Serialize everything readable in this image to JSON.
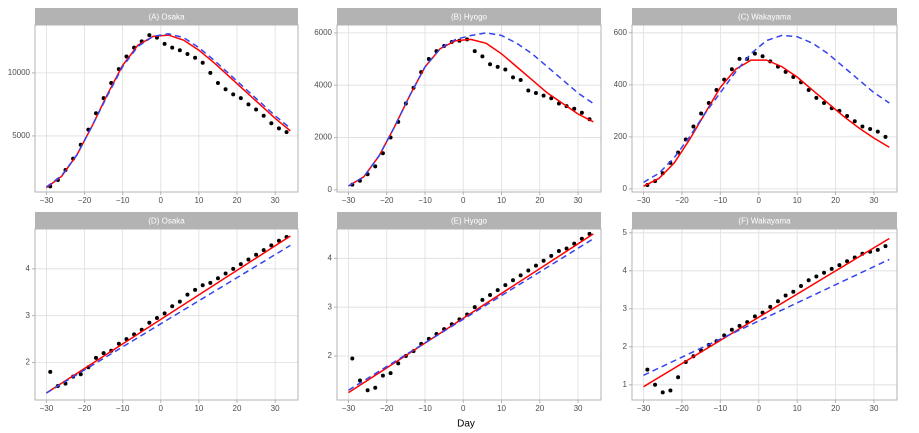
{
  "xlabel": "Day",
  "chart_data": [
    {
      "type": "scatter",
      "title": "(A) Osaka",
      "xlim": [
        -33,
        36
      ],
      "ylim": [
        550,
        13800
      ],
      "xticks": [
        {
          "value": -30,
          "label": "−30"
        },
        {
          "value": -20,
          "label": "−20"
        },
        {
          "value": -10,
          "label": "−10"
        },
        0,
        10,
        20,
        30
      ],
      "yticks": [
        5000,
        10000
      ],
      "grid": true,
      "series": [
        {
          "style": "points",
          "color": "#000000",
          "x": [
            -29,
            -27,
            -25,
            -23,
            -21,
            -19,
            -17,
            -15,
            -13,
            -11,
            -9,
            -7,
            -5,
            -3,
            -1,
            1,
            3,
            5,
            7,
            9,
            11,
            13,
            15,
            17,
            19,
            21,
            23,
            25,
            27,
            29,
            31,
            33
          ],
          "values": [
            1000,
            1500,
            2300,
            3200,
            4300,
            5500,
            6800,
            8000,
            9200,
            10300,
            11300,
            12000,
            12500,
            13000,
            12800,
            12300,
            12000,
            11800,
            11500,
            11200,
            10800,
            10000,
            9200,
            8700,
            8300,
            8000,
            7500,
            7100,
            6600,
            6000,
            5600,
            5300
          ]
        },
        {
          "style": "line",
          "color": "#ff0000",
          "x": [
            -30,
            -26,
            -22,
            -18,
            -14,
            -10,
            -6,
            -2,
            2,
            6,
            10,
            14,
            18,
            22,
            26,
            30,
            34
          ],
          "values": [
            900,
            1800,
            3500,
            5800,
            8300,
            10600,
            12200,
            12900,
            13000,
            12600,
            11800,
            10800,
            9700,
            8600,
            7500,
            6400,
            5400
          ]
        },
        {
          "style": "dashed",
          "color": "#3344ee",
          "x": [
            -30,
            -26,
            -22,
            -18,
            -14,
            -10,
            -6,
            -2,
            2,
            6,
            10,
            14,
            18,
            22,
            26,
            30,
            34
          ],
          "values": [
            950,
            1850,
            3500,
            5800,
            8200,
            10500,
            12100,
            12900,
            13100,
            12800,
            12000,
            11000,
            9900,
            8800,
            7700,
            6600,
            5600
          ]
        }
      ]
    },
    {
      "type": "scatter",
      "title": "(B) Hyogo",
      "xlim": [
        -33,
        36
      ],
      "ylim": [
        -80,
        6300
      ],
      "xticks": [
        {
          "value": -30,
          "label": "−30"
        },
        {
          "value": -20,
          "label": "−20"
        },
        {
          "value": -10,
          "label": "−10"
        },
        0,
        10,
        20,
        30
      ],
      "yticks": [
        0,
        2000,
        4000,
        6000
      ],
      "grid": true,
      "series": [
        {
          "style": "points",
          "color": "#000000",
          "x": [
            -29,
            -27,
            -25,
            -23,
            -21,
            -19,
            -17,
            -15,
            -13,
            -11,
            -9,
            -7,
            -5,
            -3,
            -1,
            1,
            3,
            5,
            7,
            9,
            11,
            13,
            15,
            17,
            19,
            21,
            23,
            25,
            27,
            29,
            31,
            33
          ],
          "values": [
            200,
            350,
            600,
            900,
            1400,
            2000,
            2600,
            3300,
            3900,
            4500,
            5000,
            5300,
            5500,
            5650,
            5700,
            5750,
            5300,
            5100,
            4800,
            4700,
            4600,
            4300,
            4200,
            3800,
            3700,
            3600,
            3500,
            3300,
            3200,
            3100,
            2950,
            2700
          ]
        },
        {
          "style": "line",
          "color": "#ff0000",
          "x": [
            -30,
            -26,
            -22,
            -18,
            -14,
            -10,
            -6,
            -2,
            2,
            6,
            10,
            14,
            18,
            22,
            26,
            30,
            34
          ],
          "values": [
            150,
            500,
            1300,
            2400,
            3600,
            4700,
            5400,
            5700,
            5750,
            5600,
            5200,
            4700,
            4200,
            3700,
            3300,
            2900,
            2600
          ]
        },
        {
          "style": "dashed",
          "color": "#3344ee",
          "x": [
            -30,
            -26,
            -22,
            -18,
            -14,
            -10,
            -6,
            -2,
            2,
            6,
            10,
            14,
            18,
            22,
            26,
            30,
            34
          ],
          "values": [
            150,
            500,
            1300,
            2400,
            3600,
            4700,
            5400,
            5750,
            5900,
            6000,
            5900,
            5600,
            5200,
            4700,
            4200,
            3700,
            3300
          ]
        }
      ]
    },
    {
      "type": "scatter",
      "title": "(C) Wakayama",
      "xlim": [
        -33,
        36
      ],
      "ylim": [
        -12,
        630
      ],
      "xticks": [
        {
          "value": -30,
          "label": "−30"
        },
        {
          "value": -20,
          "label": "−20"
        },
        {
          "value": -10,
          "label": "−10"
        },
        0,
        10,
        20,
        30
      ],
      "yticks": [
        0,
        200,
        400,
        600
      ],
      "grid": true,
      "series": [
        {
          "style": "points",
          "color": "#000000",
          "x": [
            -29,
            -27,
            -25,
            -23,
            -21,
            -19,
            -17,
            -15,
            -13,
            -11,
            -9,
            -7,
            -5,
            -3,
            -1,
            1,
            3,
            5,
            7,
            9,
            11,
            13,
            15,
            17,
            19,
            21,
            23,
            25,
            27,
            29,
            31,
            33
          ],
          "values": [
            15,
            30,
            60,
            100,
            140,
            190,
            240,
            290,
            330,
            380,
            420,
            460,
            500,
            500,
            520,
            510,
            490,
            470,
            450,
            430,
            410,
            380,
            350,
            330,
            310,
            300,
            280,
            260,
            240,
            230,
            220,
            200
          ]
        },
        {
          "style": "line",
          "color": "#ff0000",
          "x": [
            -30,
            -26,
            -22,
            -18,
            -14,
            -10,
            -6,
            -2,
            2,
            6,
            10,
            14,
            18,
            22,
            26,
            30,
            34
          ],
          "values": [
            10,
            40,
            100,
            190,
            290,
            390,
            460,
            495,
            495,
            470,
            430,
            380,
            330,
            280,
            235,
            195,
            160
          ]
        },
        {
          "style": "dashed",
          "color": "#3344ee",
          "x": [
            -30,
            -26,
            -22,
            -18,
            -14,
            -10,
            -6,
            -2,
            2,
            6,
            10,
            14,
            18,
            22,
            26,
            30,
            34
          ],
          "values": [
            25,
            60,
            120,
            200,
            290,
            370,
            450,
            520,
            570,
            590,
            585,
            560,
            520,
            470,
            420,
            370,
            330
          ]
        }
      ]
    },
    {
      "type": "scatter",
      "title": "(D) Osaka",
      "xlim": [
        -33,
        36
      ],
      "ylim": [
        1.2,
        4.85
      ],
      "xticks": [
        {
          "value": -30,
          "label": "−30"
        },
        {
          "value": -20,
          "label": "−20"
        },
        {
          "value": -10,
          "label": "−10"
        },
        0,
        10,
        20,
        30
      ],
      "yticks": [
        2,
        3,
        4
      ],
      "grid": true,
      "series": [
        {
          "style": "points",
          "color": "#000000",
          "x": [
            -29,
            -27,
            -25,
            -23,
            -21,
            -19,
            -17,
            -15,
            -13,
            -11,
            -9,
            -7,
            -5,
            -3,
            -1,
            1,
            3,
            5,
            7,
            9,
            11,
            13,
            15,
            17,
            19,
            21,
            23,
            25,
            27,
            29,
            31,
            33
          ],
          "values": [
            1.8,
            1.5,
            1.55,
            1.7,
            1.75,
            1.9,
            2.1,
            2.2,
            2.25,
            2.4,
            2.5,
            2.6,
            2.7,
            2.85,
            2.95,
            3.05,
            3.2,
            3.3,
            3.45,
            3.55,
            3.65,
            3.7,
            3.8,
            3.9,
            4.0,
            4.1,
            4.2,
            4.3,
            4.4,
            4.5,
            4.6,
            4.68
          ]
        },
        {
          "style": "line",
          "color": "#ff0000",
          "x": [
            -30,
            34
          ],
          "values": [
            1.35,
            4.7
          ]
        },
        {
          "style": "dashed",
          "color": "#3344ee",
          "x": [
            -30,
            34
          ],
          "values": [
            1.35,
            4.5
          ]
        }
      ]
    },
    {
      "type": "scatter",
      "title": "(E) Hyogo",
      "xlim": [
        -33,
        36
      ],
      "ylim": [
        1.1,
        4.6
      ],
      "xticks": [
        {
          "value": -30,
          "label": "−30"
        },
        {
          "value": -20,
          "label": "−20"
        },
        {
          "value": -10,
          "label": "−10"
        },
        0,
        10,
        20,
        30
      ],
      "yticks": [
        2,
        3,
        4
      ],
      "grid": true,
      "series": [
        {
          "style": "points",
          "color": "#000000",
          "x": [
            -29,
            -27,
            -25,
            -23,
            -21,
            -19,
            -17,
            -15,
            -13,
            -11,
            -9,
            -7,
            -5,
            -3,
            -1,
            1,
            3,
            5,
            7,
            9,
            11,
            13,
            15,
            17,
            19,
            21,
            23,
            25,
            27,
            29,
            31,
            33
          ],
          "values": [
            1.95,
            1.5,
            1.3,
            1.35,
            1.6,
            1.65,
            1.85,
            2.0,
            2.1,
            2.25,
            2.35,
            2.45,
            2.55,
            2.65,
            2.75,
            2.85,
            3.0,
            3.15,
            3.25,
            3.35,
            3.45,
            3.55,
            3.65,
            3.75,
            3.85,
            3.95,
            4.05,
            4.15,
            4.2,
            4.3,
            4.4,
            4.5
          ]
        },
        {
          "style": "line",
          "color": "#ff0000",
          "x": [
            -30,
            34
          ],
          "values": [
            1.25,
            4.5
          ]
        },
        {
          "style": "dashed",
          "color": "#3344ee",
          "x": [
            -30,
            34
          ],
          "values": [
            1.3,
            4.4
          ]
        }
      ]
    },
    {
      "type": "scatter",
      "title": "(F) Wakayama",
      "xlim": [
        -33,
        36
      ],
      "ylim": [
        0.6,
        5.1
      ],
      "xticks": [
        {
          "value": -30,
          "label": "−30"
        },
        {
          "value": -20,
          "label": "−20"
        },
        {
          "value": -10,
          "label": "−10"
        },
        0,
        10,
        20,
        30
      ],
      "yticks": [
        1,
        2,
        3,
        4,
        5
      ],
      "grid": true,
      "series": [
        {
          "style": "points",
          "color": "#000000",
          "x": [
            -29,
            -27,
            -25,
            -23,
            -21,
            -19,
            -17,
            -15,
            -13,
            -11,
            -9,
            -7,
            -5,
            -3,
            -1,
            1,
            3,
            5,
            7,
            9,
            11,
            13,
            15,
            17,
            19,
            21,
            23,
            25,
            27,
            29,
            31,
            33
          ],
          "values": [
            1.4,
            1.0,
            0.8,
            0.85,
            1.2,
            1.6,
            1.75,
            1.9,
            2.05,
            2.15,
            2.3,
            2.45,
            2.55,
            2.65,
            2.8,
            2.9,
            3.05,
            3.2,
            3.35,
            3.45,
            3.6,
            3.75,
            3.85,
            3.95,
            4.05,
            4.15,
            4.25,
            4.35,
            4.45,
            4.5,
            4.55,
            4.65
          ]
        },
        {
          "style": "line",
          "color": "#ff0000",
          "x": [
            -30,
            34
          ],
          "values": [
            0.95,
            4.85
          ]
        },
        {
          "style": "dashed",
          "color": "#3344ee",
          "x": [
            -30,
            34
          ],
          "values": [
            1.25,
            4.3
          ]
        }
      ]
    }
  ]
}
